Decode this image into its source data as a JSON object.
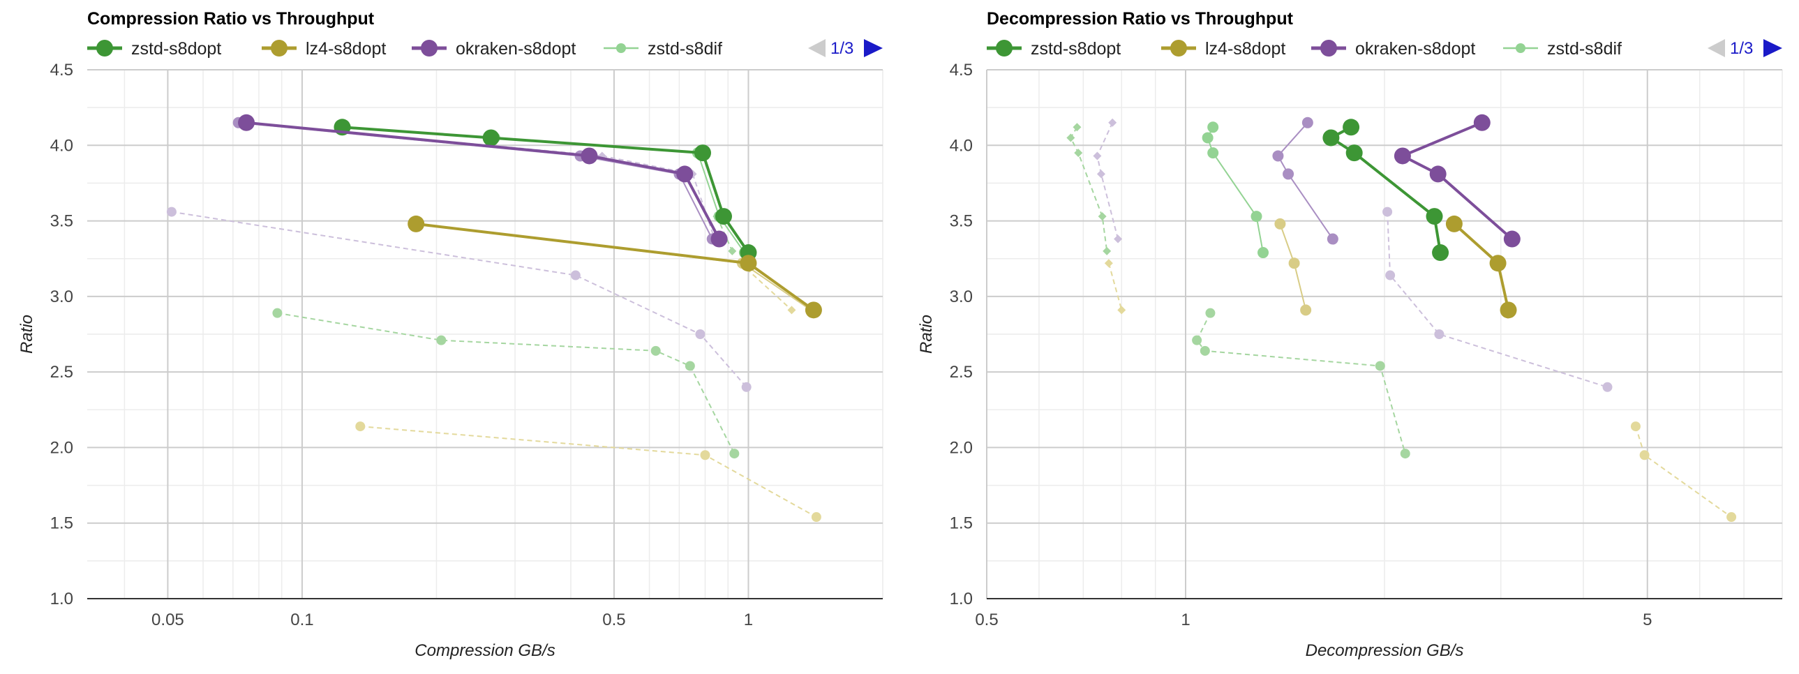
{
  "chart_data": [
    {
      "type": "scatter",
      "title": "Compression Ratio vs Throughput",
      "xlabel": "Compression GB/s",
      "ylabel": "Ratio",
      "xscale": "log",
      "xlim": [
        0.033,
        2.0
      ],
      "ylim": [
        1.0,
        4.5
      ],
      "x_ticks": [
        {
          "v": 0.05,
          "label": "0.05"
        },
        {
          "v": 0.1,
          "label": "0.1"
        },
        {
          "v": 0.5,
          "label": "0.5"
        },
        {
          "v": 1,
          "label": "1"
        }
      ],
      "y_ticks": [
        {
          "v": 1.0,
          "label": "1.0"
        },
        {
          "v": 1.5,
          "label": "1.5"
        },
        {
          "v": 2.0,
          "label": "2.0"
        },
        {
          "v": 2.5,
          "label": "2.5"
        },
        {
          "v": 3.0,
          "label": "3.0"
        },
        {
          "v": 3.5,
          "label": "3.5"
        },
        {
          "v": 4.0,
          "label": "4.0"
        },
        {
          "v": 4.5,
          "label": "4.5"
        }
      ],
      "grid": true,
      "legend_position": "top",
      "pager": "1/3",
      "legend": [
        {
          "name": "zstd-s8dopt",
          "color": "#3d9635",
          "style": "thick"
        },
        {
          "name": "lz4-s8dopt",
          "color": "#ad9d2f",
          "style": "thick"
        },
        {
          "name": "okraken-s8dopt",
          "color": "#7d4e9a",
          "style": "thick"
        },
        {
          "name": "zstd-s8dif",
          "color": "#93d393",
          "style": "thin"
        }
      ],
      "series": [
        {
          "color": "#a5d6a0",
          "width": 2,
          "dash": "7,5",
          "r": 7,
          "marker": "circle",
          "points": [
            [
              0.088,
              2.89
            ],
            [
              0.205,
              2.71
            ],
            [
              0.62,
              2.64
            ],
            [
              0.74,
              2.54
            ],
            [
              0.93,
              1.96
            ]
          ]
        },
        {
          "color": "#e3d99b",
          "width": 2,
          "dash": "7,5",
          "r": 7,
          "marker": "circle",
          "points": [
            [
              0.135,
              2.14
            ],
            [
              0.8,
              1.95
            ],
            [
              1.42,
              1.54
            ]
          ]
        },
        {
          "color": "#ccbfdb",
          "width": 2,
          "dash": "7,5",
          "r": 7,
          "marker": "circle",
          "points": [
            [
              0.051,
              3.56
            ],
            [
              0.41,
              3.14
            ],
            [
              0.78,
              2.75
            ],
            [
              0.99,
              2.4
            ]
          ]
        },
        {
          "color": "#ccbfdb",
          "width": 2,
          "dash": "7,5",
          "r": 6,
          "marker": "diamond",
          "points": [
            [
              0.074,
              4.15
            ],
            [
              0.47,
              3.93
            ],
            [
              0.75,
              3.81
            ],
            [
              0.84,
              3.38
            ]
          ]
        },
        {
          "color": "#e3d99b",
          "width": 2,
          "dash": "7,5",
          "r": 6,
          "marker": "diamond",
          "points": [
            [
              0.96,
              3.22
            ],
            [
              1.25,
              2.91
            ]
          ]
        },
        {
          "color": "#a5d6a0",
          "width": 2,
          "dash": "7,5",
          "r": 6,
          "marker": "diamond",
          "points": [
            [
              0.85,
              3.53
            ],
            [
              0.92,
              3.3
            ]
          ]
        },
        {
          "color": "#93d393",
          "width": 2,
          "dash": "",
          "r": 8,
          "marker": "circle",
          "points": [
            [
              0.125,
              4.12
            ],
            [
              0.27,
              4.05
            ],
            [
              0.77,
              3.95
            ],
            [
              0.86,
              3.53
            ],
            [
              0.98,
              3.29
            ]
          ]
        },
        {
          "color": "#d8cc86",
          "width": 2,
          "dash": "",
          "r": 8,
          "marker": "circle",
          "points": [
            [
              0.178,
              3.48
            ],
            [
              0.97,
              3.22
            ],
            [
              1.38,
              2.91
            ]
          ]
        },
        {
          "color": "#a98ec2",
          "width": 2,
          "dash": "",
          "r": 8,
          "marker": "circle",
          "points": [
            [
              0.072,
              4.15
            ],
            [
              0.42,
              3.93
            ],
            [
              0.7,
              3.81
            ],
            [
              0.83,
              3.38
            ]
          ]
        },
        {
          "color": "#3d9635",
          "width": 4,
          "dash": "",
          "r": 12,
          "marker": "circle",
          "points": [
            [
              0.123,
              4.12
            ],
            [
              0.265,
              4.05
            ],
            [
              0.79,
              3.95
            ],
            [
              0.88,
              3.53
            ],
            [
              1.0,
              3.29
            ]
          ]
        },
        {
          "color": "#ad9d2f",
          "width": 4,
          "dash": "",
          "r": 12,
          "marker": "circle",
          "points": [
            [
              0.18,
              3.48
            ],
            [
              1.0,
              3.22
            ],
            [
              1.4,
              2.91
            ]
          ]
        },
        {
          "color": "#7d4e9a",
          "width": 4,
          "dash": "",
          "r": 12,
          "marker": "circle",
          "points": [
            [
              0.075,
              4.15
            ],
            [
              0.44,
              3.93
            ],
            [
              0.72,
              3.81
            ],
            [
              0.86,
              3.38
            ]
          ]
        }
      ]
    },
    {
      "type": "scatter",
      "title": "Decompression Ratio vs Throughput",
      "xlabel": "Decompression GB/s",
      "ylabel": "Ratio",
      "xscale": "log",
      "xlim": [
        0.5,
        8.0
      ],
      "ylim": [
        1.0,
        4.5
      ],
      "x_ticks": [
        {
          "v": 0.5,
          "label": "0.5"
        },
        {
          "v": 1,
          "label": "1"
        },
        {
          "v": 5,
          "label": "5"
        }
      ],
      "y_ticks": [
        {
          "v": 1.0,
          "label": "1.0"
        },
        {
          "v": 1.5,
          "label": "1.5"
        },
        {
          "v": 2.0,
          "label": "2.0"
        },
        {
          "v": 2.5,
          "label": "2.5"
        },
        {
          "v": 3.0,
          "label": "3.0"
        },
        {
          "v": 3.5,
          "label": "3.5"
        },
        {
          "v": 4.0,
          "label": "4.0"
        },
        {
          "v": 4.5,
          "label": "4.5"
        }
      ],
      "grid": true,
      "legend_position": "top",
      "pager": "1/3",
      "legend": [
        {
          "name": "zstd-s8dopt",
          "color": "#3d9635",
          "style": "thick"
        },
        {
          "name": "lz4-s8dopt",
          "color": "#ad9d2f",
          "style": "thick"
        },
        {
          "name": "okraken-s8dopt",
          "color": "#7d4e9a",
          "style": "thick"
        },
        {
          "name": "zstd-s8dif",
          "color": "#93d393",
          "style": "thin"
        }
      ],
      "series": [
        {
          "color": "#a5d6a0",
          "width": 2,
          "dash": "7,5",
          "r": 7,
          "marker": "circle",
          "points": [
            [
              1.09,
              2.89
            ],
            [
              1.04,
              2.71
            ],
            [
              1.07,
              2.64
            ],
            [
              1.97,
              2.54
            ],
            [
              2.15,
              1.96
            ]
          ]
        },
        {
          "color": "#e3d99b",
          "width": 2,
          "dash": "7,5",
          "r": 7,
          "marker": "circle",
          "points": [
            [
              4.8,
              2.14
            ],
            [
              4.95,
              1.95
            ],
            [
              6.7,
              1.54
            ]
          ]
        },
        {
          "color": "#ccbfdb",
          "width": 2,
          "dash": "7,5",
          "r": 7,
          "marker": "circle",
          "points": [
            [
              2.02,
              3.56
            ],
            [
              2.04,
              3.14
            ],
            [
              2.42,
              2.75
            ],
            [
              4.35,
              2.4
            ]
          ]
        },
        {
          "color": "#ccbfdb",
          "width": 2,
          "dash": "7,5",
          "r": 6,
          "marker": "diamond",
          "points": [
            [
              0.775,
              4.15
            ],
            [
              0.735,
              3.93
            ],
            [
              0.745,
              3.81
            ],
            [
              0.79,
              3.38
            ]
          ]
        },
        {
          "color": "#e3d99b",
          "width": 2,
          "dash": "7,5",
          "r": 6,
          "marker": "diamond",
          "points": [
            [
              0.765,
              3.22
            ],
            [
              0.8,
              2.91
            ]
          ]
        },
        {
          "color": "#a5d6a0",
          "width": 2,
          "dash": "7,5",
          "r": 6,
          "marker": "diamond",
          "points": [
            [
              0.685,
              4.12
            ],
            [
              0.67,
              4.05
            ],
            [
              0.688,
              3.95
            ],
            [
              0.748,
              3.53
            ],
            [
              0.76,
              3.3
            ]
          ]
        },
        {
          "color": "#93d393",
          "width": 2,
          "dash": "",
          "r": 8,
          "marker": "circle",
          "points": [
            [
              1.1,
              4.12
            ],
            [
              1.08,
              4.05
            ],
            [
              1.1,
              3.95
            ],
            [
              1.28,
              3.53
            ],
            [
              1.31,
              3.29
            ]
          ]
        },
        {
          "color": "#d8cc86",
          "width": 2,
          "dash": "",
          "r": 8,
          "marker": "circle",
          "points": [
            [
              1.39,
              3.48
            ],
            [
              1.46,
              3.22
            ],
            [
              1.52,
              2.91
            ]
          ]
        },
        {
          "color": "#a98ec2",
          "width": 2,
          "dash": "",
          "r": 8,
          "marker": "circle",
          "points": [
            [
              1.53,
              4.15
            ],
            [
              1.38,
              3.93
            ],
            [
              1.43,
              3.81
            ],
            [
              1.67,
              3.38
            ]
          ]
        },
        {
          "color": "#3d9635",
          "width": 4,
          "dash": "",
          "r": 12,
          "marker": "circle",
          "points": [
            [
              1.78,
              4.12
            ],
            [
              1.66,
              4.05
            ],
            [
              1.8,
              3.95
            ],
            [
              2.38,
              3.53
            ],
            [
              2.43,
              3.29
            ]
          ]
        },
        {
          "color": "#ad9d2f",
          "width": 4,
          "dash": "",
          "r": 12,
          "marker": "circle",
          "points": [
            [
              2.55,
              3.48
            ],
            [
              2.97,
              3.22
            ],
            [
              3.08,
              2.91
            ]
          ]
        },
        {
          "color": "#7d4e9a",
          "width": 4,
          "dash": "",
          "r": 12,
          "marker": "circle",
          "points": [
            [
              2.81,
              4.15
            ],
            [
              2.13,
              3.93
            ],
            [
              2.41,
              3.81
            ],
            [
              3.12,
              3.38
            ]
          ]
        }
      ]
    }
  ]
}
